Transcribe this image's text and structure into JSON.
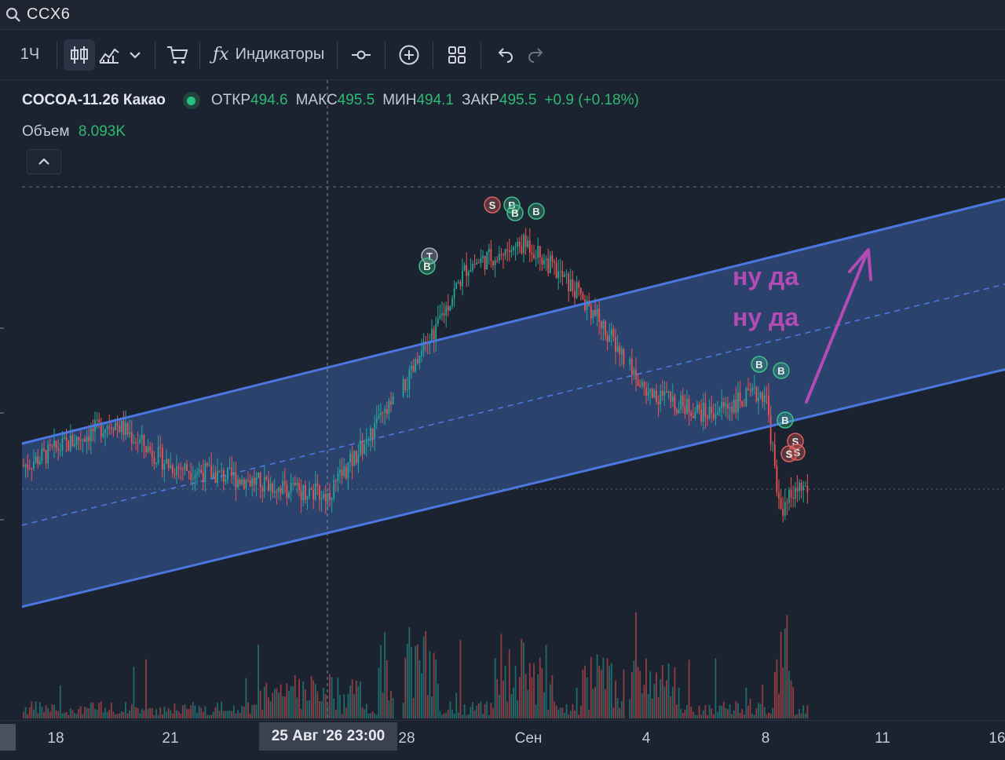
{
  "search": {
    "ticker": "CCX6"
  },
  "toolbar": {
    "interval": "1Ч",
    "indicators_label": "Индикаторы",
    "icons": [
      "candles-icon",
      "line-chart-icon",
      "chevron-down-icon",
      "cart-icon",
      "fx-icon",
      "crosshair-dot-icon",
      "plus-circle-icon",
      "grid-icon",
      "undo-icon",
      "redo-icon"
    ]
  },
  "legend": {
    "symbol": "COCOA-11.26 Какао",
    "open_label": "ОТКР",
    "open": "494.6",
    "high_label": "МАКС",
    "high": "495.5",
    "low_label": "МИН",
    "low": "494.1",
    "close_label": "ЗАКР",
    "close": "495.5",
    "change": "+0.9 (+0.18%)",
    "volume_label": "Объем",
    "volume": "8.093K"
  },
  "annotation": {
    "line1": "ну да",
    "line2": "ну да",
    "color": "#b24bb4"
  },
  "time_axis": {
    "labels": [
      "18",
      "21",
      "28",
      "Сен",
      "4",
      "8",
      "11",
      "16"
    ],
    "crosshair_label": "25 Авг '26   23:00"
  },
  "colors": {
    "up": "#26a69a",
    "down": "#ef5350",
    "channel": "#4a78e0",
    "channel_fill": "#2e4878"
  },
  "markers": [
    {
      "type": "S",
      "color": "#e06060"
    },
    {
      "type": "B",
      "color": "#3fbf8a"
    },
    {
      "type": "B",
      "color": "#3fbf8a"
    },
    {
      "type": "B",
      "color": "#3fbf8a"
    },
    {
      "type": "T",
      "color": "#b0b4bf"
    },
    {
      "type": "B",
      "color": "#3fbf8a"
    },
    {
      "type": "B",
      "color": "#3fbf8a"
    },
    {
      "type": "B",
      "color": "#3fbf8a"
    },
    {
      "type": "B",
      "color": "#3fbf8a"
    },
    {
      "type": "S",
      "color": "#e06060"
    },
    {
      "type": "S",
      "color": "#e06060"
    },
    {
      "type": "S",
      "color": "#e06060"
    }
  ],
  "chart_data": {
    "type": "candlestick",
    "title": "COCOA-11.26 Какао",
    "x_labels": [
      "18",
      "21",
      "25 Авг '26 23:00",
      "28",
      "Сен",
      "4",
      "8",
      "11",
      "16"
    ],
    "close_path": [
      [
        "18",
        494.0
      ],
      [
        "18",
        497.0
      ],
      [
        "21",
        494.0
      ],
      [
        "21",
        493.0
      ],
      [
        "25 Авг '26 23:00",
        492.0
      ],
      [
        "28",
        499.5
      ],
      [
        "28",
        507.5
      ],
      [
        "Сен",
        509.0
      ],
      [
        "Сен",
        505.0
      ],
      [
        "4",
        499.0
      ],
      [
        "4",
        497.5
      ],
      [
        "8",
        499.0
      ],
      [
        "8",
        491.0
      ],
      [
        "8",
        492.5
      ]
    ],
    "channel": {
      "upper_start": 495.5,
      "upper_end": 512.0,
      "lower_start": 484.5,
      "lower_end": 500.5,
      "style": "parallel channel with dashed midline"
    },
    "grid": false,
    "legend_placement": "top-left"
  }
}
